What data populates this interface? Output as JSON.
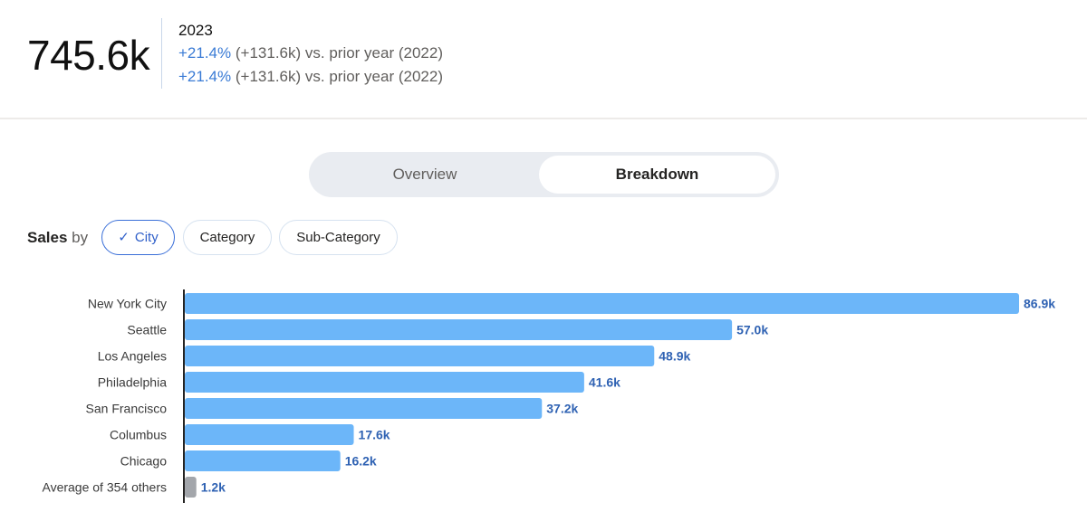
{
  "kpi": {
    "value": "745.6k",
    "year": "2023",
    "lines": [
      {
        "pct": "+21.4%",
        "rest": " (+131.6k) vs. prior year (2022)"
      },
      {
        "pct": "+21.4%",
        "rest": " (+131.6k) vs. prior year (2022)"
      }
    ]
  },
  "toggle": {
    "overview_label": "Overview",
    "breakdown_label": "Breakdown",
    "selected": "Breakdown"
  },
  "filter": {
    "prefix_strong": "Sales",
    "prefix_light": "by",
    "chips": [
      {
        "label": "City",
        "selected": true,
        "icon": "checkmark-icon"
      },
      {
        "label": "Category",
        "selected": false
      },
      {
        "label": "Sub-Category",
        "selected": false
      }
    ]
  },
  "colors": {
    "bar": "#6cb6f9",
    "bar_other": "#a3a6ab",
    "accent": "#3a7bd5"
  },
  "chart_data": {
    "type": "bar",
    "orientation": "horizontal",
    "categories": [
      "New York City",
      "Seattle",
      "Los Angeles",
      "Philadelphia",
      "San Francisco",
      "Columbus",
      "Chicago",
      "Average of 354 others"
    ],
    "values": [
      86.9,
      57.0,
      48.9,
      41.6,
      37.2,
      17.6,
      16.2,
      1.2
    ],
    "value_labels": [
      "86.9k",
      "57.0k",
      "48.9k",
      "41.6k",
      "37.2k",
      "17.6k",
      "16.2k",
      "1.2k"
    ],
    "highlight_last_as_other": true,
    "xlim": [
      0,
      86.9
    ]
  }
}
